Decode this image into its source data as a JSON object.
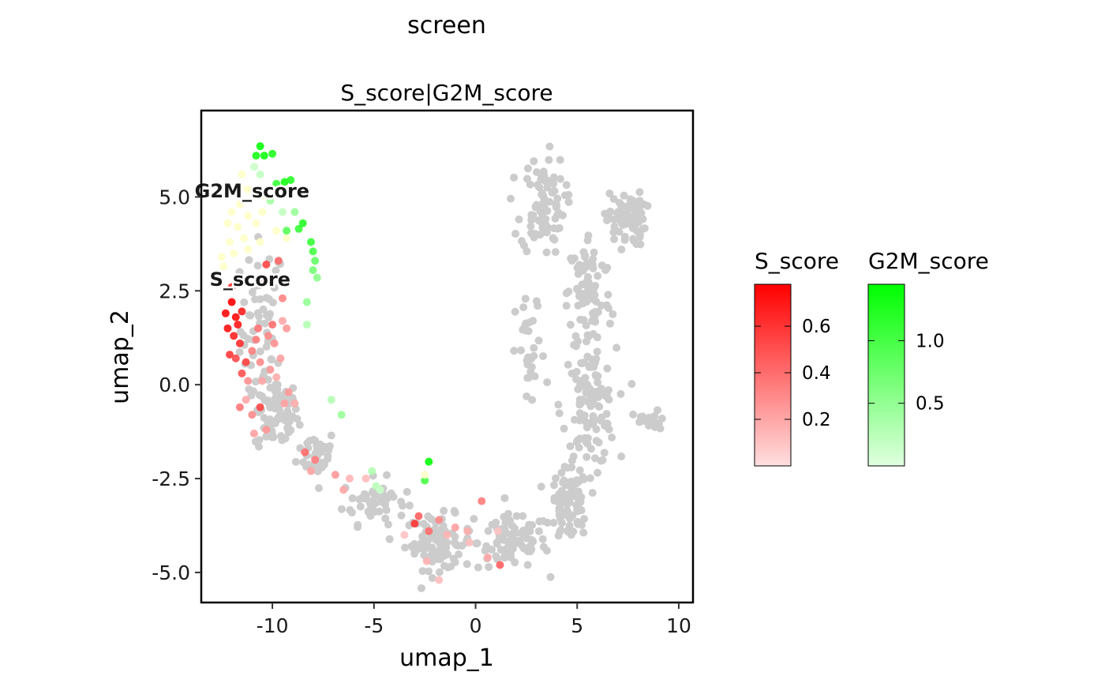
{
  "page": {
    "title": "screen"
  },
  "chart_data": {
    "type": "scatter",
    "title": "S_score|G2M_score",
    "xlabel": "umap_1",
    "ylabel": "umap_2",
    "xlim": [
      -13.5,
      10.7
    ],
    "ylim": [
      -5.8,
      7.3
    ],
    "x_ticks": [
      -10,
      -5,
      0,
      5,
      10
    ],
    "x_tick_labels": [
      "-10",
      "-5",
      "0",
      "5",
      "10"
    ],
    "y_ticks": [
      -5,
      -2.5,
      0,
      2.5,
      5
    ],
    "y_tick_labels": [
      "-5.0",
      "-2.5",
      "0.0",
      "2.5",
      "5.0"
    ],
    "grid": false,
    "background_color": "#cccccc",
    "series": [
      {
        "name": "S_score",
        "color_low": "#ffdfe0",
        "color_high": "#ff0000",
        "range": [
          0,
          0.78
        ],
        "legend_ticks": [
          0.2,
          0.4,
          0.6
        ],
        "legend_tick_labels": [
          "0.2",
          "0.4",
          "0.6"
        ],
        "label_position": [
          -11.1,
          2.8
        ],
        "points": [
          [
            -12.0,
            2.2,
            0.78
          ],
          [
            -12.3,
            1.9,
            0.75
          ],
          [
            -11.8,
            1.8,
            0.74
          ],
          [
            -12.2,
            1.5,
            0.72
          ],
          [
            -11.7,
            1.6,
            0.7
          ],
          [
            -11.5,
            1.95,
            0.68
          ],
          [
            -11.9,
            1.3,
            0.66
          ],
          [
            -11.6,
            1.1,
            0.62
          ],
          [
            -12.1,
            0.8,
            0.58
          ],
          [
            -11.3,
            0.6,
            0.55
          ],
          [
            -11.8,
            0.7,
            0.52
          ],
          [
            -11.5,
            0.3,
            0.5
          ],
          [
            -12.0,
            2.6,
            0.64
          ],
          [
            -10.3,
            3.2,
            0.55
          ],
          [
            -10.5,
            2.8,
            0.48
          ],
          [
            -9.7,
            3.3,
            0.42
          ],
          [
            -9.5,
            2.3,
            0.32
          ],
          [
            -10.8,
            1.2,
            0.35
          ],
          [
            -10.2,
            1.3,
            0.3
          ],
          [
            -9.9,
            1.1,
            0.28
          ],
          [
            -11.0,
            0.9,
            0.34
          ],
          [
            -10.6,
            0.6,
            0.3
          ],
          [
            -10.1,
            0.4,
            0.25
          ],
          [
            -9.6,
            0.7,
            0.22
          ],
          [
            -11.2,
            0.1,
            0.28
          ],
          [
            -10.5,
            0.1,
            0.2
          ],
          [
            -9.8,
            0.2,
            0.18
          ],
          [
            -11.6,
            -0.6,
            0.36
          ],
          [
            -11.0,
            -0.8,
            0.3
          ],
          [
            -10.6,
            -0.6,
            0.55
          ],
          [
            -9.2,
            -0.2,
            0.25
          ],
          [
            -10.9,
            -1.3,
            0.22
          ],
          [
            -8.9,
            -0.5,
            0.18
          ],
          [
            -8.4,
            -1.8,
            0.4
          ],
          [
            -8.1,
            -2.3,
            0.22
          ],
          [
            -7.9,
            -2.0,
            0.35
          ],
          [
            -6.9,
            -2.4,
            0.25
          ],
          [
            -6.5,
            -2.8,
            0.2
          ],
          [
            -6.2,
            -2.5,
            0.15
          ],
          [
            -5.4,
            -2.5,
            0.12
          ],
          [
            -3.0,
            -3.7,
            0.6
          ],
          [
            -2.8,
            -3.5,
            0.45
          ],
          [
            -2.3,
            -3.9,
            0.4
          ],
          [
            -1.8,
            -3.6,
            0.3
          ],
          [
            -1.0,
            -3.8,
            0.22
          ],
          [
            -0.4,
            -3.9,
            0.18
          ],
          [
            -1.4,
            -4.0,
            0.15
          ],
          [
            0.3,
            -3.1,
            0.35
          ],
          [
            0.6,
            -4.6,
            0.2
          ],
          [
            1.2,
            -4.8,
            0.45
          ],
          [
            -1.8,
            -5.2,
            0.12
          ],
          [
            -2.4,
            -4.7,
            0.15
          ],
          [
            -3.5,
            -4.0,
            0.1
          ],
          [
            -0.3,
            -4.2,
            0.12
          ],
          [
            1.1,
            -3.9,
            0.1
          ],
          [
            -9.3,
            1.5,
            0.25
          ],
          [
            -10.0,
            1.6,
            0.4
          ],
          [
            -9.5,
            1.7,
            0.2
          ],
          [
            -10.7,
            1.5,
            0.38
          ],
          [
            -11.3,
            -0.4,
            0.2
          ],
          [
            -10.3,
            -1.2,
            0.26
          ],
          [
            -9.4,
            -0.5,
            0.22
          ]
        ]
      },
      {
        "name": "G2M_score",
        "color_low": "#e0ffe0",
        "color_high": "#00ff00",
        "range": [
          0,
          1.45
        ],
        "legend_ticks": [
          0.5,
          1.0
        ],
        "legend_tick_labels": [
          "0.5",
          "1.0"
        ],
        "label_position": [
          -11.0,
          5.15
        ],
        "points": [
          [
            -10.6,
            6.35,
            1.4
          ],
          [
            -10.4,
            6.1,
            1.35
          ],
          [
            -10.8,
            6.1,
            1.3
          ],
          [
            -10.0,
            6.15,
            1.25
          ],
          [
            -9.4,
            5.4,
            1.3
          ],
          [
            -9.1,
            5.45,
            1.2
          ],
          [
            -9.8,
            5.35,
            1.1
          ],
          [
            -9.2,
            5.1,
            1.0
          ],
          [
            -8.5,
            4.3,
            1.2
          ],
          [
            -8.7,
            4.15,
            1.1
          ],
          [
            -9.3,
            4.1,
            0.9
          ],
          [
            -8.1,
            3.8,
            1.1
          ],
          [
            -8.0,
            3.55,
            1.0
          ],
          [
            -7.9,
            3.3,
            0.8
          ],
          [
            -8.0,
            3.05,
            0.7
          ],
          [
            -7.8,
            2.85,
            0.55
          ],
          [
            -8.3,
            2.2,
            0.5
          ],
          [
            -8.3,
            1.6,
            0.3
          ],
          [
            -7.1,
            -0.4,
            0.3
          ],
          [
            -6.6,
            -0.8,
            0.45
          ],
          [
            -5.1,
            -2.3,
            0.3
          ],
          [
            -4.9,
            -2.7,
            0.25
          ],
          [
            -4.7,
            -2.8,
            0.15
          ],
          [
            -2.3,
            -2.05,
            1.4
          ],
          [
            -2.5,
            -2.55,
            1.0
          ],
          [
            -8.9,
            4.6,
            0.45
          ],
          [
            -10.1,
            4.9,
            0.4
          ],
          [
            -9.5,
            4.6,
            0.2
          ],
          [
            -10.6,
            5.6,
            0.2
          ],
          [
            -10.9,
            5.8,
            0.15
          ],
          [
            -11.5,
            5.6,
            0.05
          ],
          [
            -11.9,
            5.1,
            0.05
          ],
          [
            -11.6,
            4.8,
            0.05
          ],
          [
            -12.0,
            4.6,
            0.05
          ],
          [
            -11.2,
            4.5,
            0.05
          ],
          [
            -11.7,
            4.2,
            0.05
          ],
          [
            -12.2,
            4.3,
            0.05
          ],
          [
            -10.8,
            4.3,
            0.05
          ],
          [
            -11.4,
            3.9,
            0.05
          ],
          [
            -12.1,
            3.8,
            0.05
          ],
          [
            -11.9,
            3.5,
            0.05
          ],
          [
            -12.5,
            3.4,
            0.05
          ],
          [
            -12.4,
            3.15,
            0.05
          ],
          [
            -11.2,
            3.6,
            0.05
          ],
          [
            -10.6,
            3.8,
            0.05
          ],
          [
            -9.8,
            4.1,
            0.05
          ],
          [
            -10.5,
            4.6,
            0.05
          ],
          [
            -11.2,
            5.2,
            0.05
          ],
          [
            -11.6,
            5.25,
            0.05
          ],
          [
            -10.4,
            5.05,
            0.05
          ],
          [
            -9.3,
            3.9,
            0.05
          ],
          [
            -2.5,
            -2.4,
            0.05
          ]
        ]
      }
    ],
    "background_clusters": [
      {
        "name": "left-arm",
        "cx": -10.5,
        "cy": 1.5,
        "sx": 0.9,
        "sy": 2.0,
        "n": 60
      },
      {
        "name": "left-lower",
        "cx": -9.8,
        "cy": -0.8,
        "sx": 0.9,
        "sy": 0.8,
        "n": 70
      },
      {
        "name": "left-bend",
        "cx": -7.8,
        "cy": -1.8,
        "sx": 0.8,
        "sy": 0.5,
        "n": 40
      },
      {
        "name": "bottom-left",
        "cx": -5.0,
        "cy": -3.1,
        "sx": 1.3,
        "sy": 0.5,
        "n": 50
      },
      {
        "name": "bottom",
        "cx": -1.8,
        "cy": -4.2,
        "sx": 1.4,
        "sy": 0.6,
        "n": 90
      },
      {
        "name": "bottom-right",
        "cx": 1.8,
        "cy": -4.2,
        "sx": 1.4,
        "sy": 0.6,
        "n": 90
      },
      {
        "name": "right-lower",
        "cx": 4.6,
        "cy": -3.2,
        "sx": 0.8,
        "sy": 0.8,
        "n": 80
      },
      {
        "name": "right-middle",
        "cx": 5.6,
        "cy": -0.6,
        "sx": 1.1,
        "sy": 1.3,
        "n": 110
      },
      {
        "name": "right-upper",
        "cx": 5.6,
        "cy": 2.4,
        "sx": 0.9,
        "sy": 1.4,
        "n": 90
      },
      {
        "name": "top-branch",
        "cx": 3.3,
        "cy": 4.8,
        "sx": 0.9,
        "sy": 1.1,
        "n": 90
      },
      {
        "name": "upper-right-branch",
        "cx": 7.4,
        "cy": 4.4,
        "sx": 0.8,
        "sy": 0.6,
        "n": 70
      },
      {
        "name": "right-tail",
        "cx": 8.6,
        "cy": -1.0,
        "sx": 0.7,
        "sy": 0.25,
        "n": 20
      },
      {
        "name": "mid-strand",
        "cx": 2.7,
        "cy": 0.8,
        "sx": 0.6,
        "sy": 1.3,
        "n": 30
      }
    ]
  }
}
